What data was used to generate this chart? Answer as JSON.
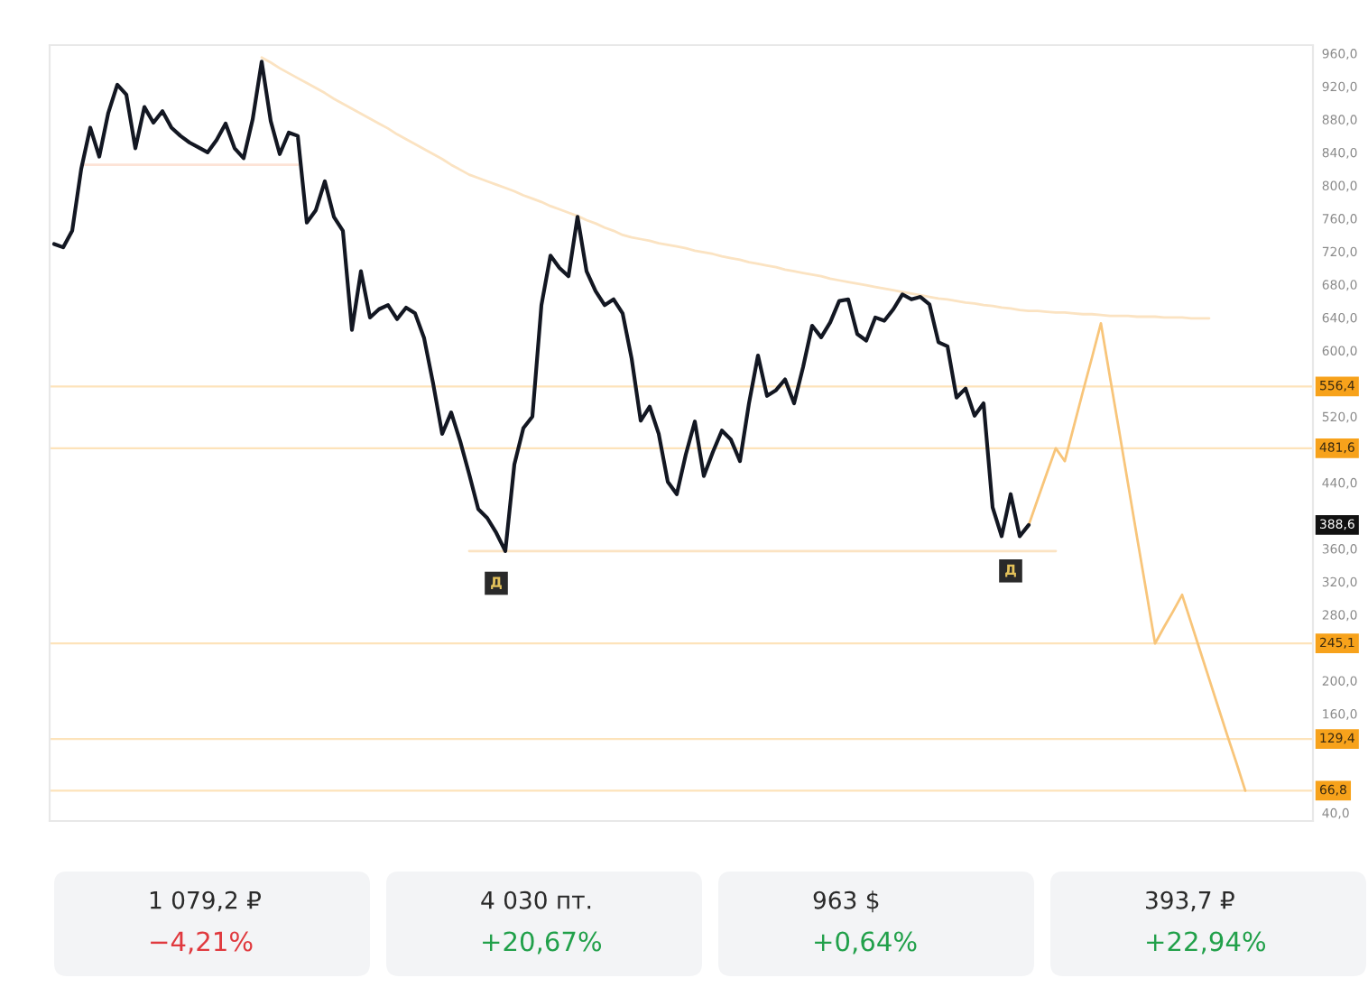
{
  "chart_data": [
    {
      "type": "line",
      "categories": [
        null,
        null,
        null,
        null,
        null,
        null,
        null,
        null,
        null,
        null,
        null,
        null,
        null,
        null,
        null,
        null,
        null,
        null,
        null,
        null,
        null,
        null,
        null,
        null,
        null,
        null,
        null,
        null,
        null,
        null,
        null,
        null,
        null,
        null,
        null,
        null,
        null,
        null,
        null,
        null,
        null,
        null,
        null,
        null,
        null,
        null,
        null,
        null,
        null,
        null,
        null,
        null,
        null,
        null,
        null,
        null,
        null,
        null,
        null,
        null,
        null,
        null,
        null,
        null,
        null,
        null,
        null,
        null,
        null,
        null,
        null,
        null,
        null,
        null,
        null,
        null,
        null,
        null,
        null,
        null,
        null,
        null,
        null,
        null,
        null,
        null,
        null,
        null,
        null,
        null,
        null,
        null,
        null,
        null,
        null,
        null,
        null,
        null,
        null,
        null,
        null,
        null,
        null,
        null,
        null,
        null,
        null,
        null,
        null,
        null,
        null,
        null,
        null,
        null,
        null,
        null,
        null,
        null,
        null,
        null,
        null,
        null,
        null,
        null,
        null,
        null,
        null,
        null,
        null,
        null,
        null,
        null,
        null,
        null,
        null,
        null,
        null,
        null,
        null,
        null
      ],
      "series": [
        {
          "type": "line",
          "color": "#fde3d6",
          "values": [
            null,
            null,
            null,
            825,
            825,
            825,
            825,
            825,
            825,
            825,
            825,
            825,
            825,
            825,
            825,
            825,
            825,
            825,
            825,
            825,
            825,
            825,
            825,
            825,
            825,
            825,
            825,
            825,
            null,
            null,
            null,
            null,
            null,
            null,
            null,
            null,
            null,
            null,
            null,
            null,
            null,
            null,
            null,
            null,
            null,
            null,
            null,
            null,
            null,
            null,
            null,
            null,
            null,
            null,
            null,
            null,
            null,
            null,
            null,
            null,
            null,
            null,
            null,
            null,
            null,
            null,
            null,
            null,
            null,
            null,
            null,
            null,
            null,
            null,
            null,
            null,
            null,
            null,
            null,
            null,
            null,
            null,
            null,
            null,
            null,
            null,
            null,
            null,
            null,
            null,
            null,
            null,
            null,
            null,
            null,
            null,
            null,
            null,
            null,
            null,
            null,
            null,
            null,
            null,
            null,
            null,
            null,
            null,
            null,
            null,
            null,
            null,
            null,
            null,
            null,
            null,
            null,
            null,
            null,
            null,
            null,
            null,
            null,
            null,
            null,
            null,
            null,
            null,
            null,
            null,
            null,
            null,
            null,
            null,
            null,
            null,
            null,
            null,
            null,
            null
          ]
        },
        {
          "type": "line",
          "color": "#fbe3c2",
          "values": [
            null,
            null,
            null,
            null,
            null,
            null,
            null,
            null,
            null,
            null,
            null,
            null,
            null,
            null,
            null,
            null,
            null,
            null,
            null,
            null,
            null,
            null,
            null,
            null,
            null,
            null,
            null,
            null,
            null,
            null,
            null,
            null,
            null,
            null,
            null,
            null,
            null,
            null,
            null,
            null,
            null,
            null,
            null,
            null,
            null,
            null,
            357,
            357,
            357,
            357,
            357,
            357,
            357,
            357,
            357,
            357,
            357,
            357,
            357,
            357,
            357,
            357,
            357,
            357,
            357,
            357,
            357,
            357,
            357,
            357,
            357,
            357,
            357,
            357,
            357,
            357,
            357,
            357,
            357,
            357,
            357,
            357,
            357,
            357,
            357,
            357,
            357,
            357,
            357,
            357,
            357,
            357,
            357,
            357,
            357,
            357,
            357,
            357,
            357,
            357,
            357,
            357,
            357,
            357,
            357,
            357,
            357,
            357,
            357,
            357,
            357,
            357,
            null,
            null,
            null,
            null,
            null,
            null,
            null,
            null,
            null,
            null,
            null,
            null,
            null,
            null,
            null,
            null,
            null,
            null,
            null,
            null,
            null,
            null,
            null,
            null,
            null,
            null,
            null,
            null
          ]
        },
        {
          "type": "line",
          "color": "#fbe3c2",
          "values": [
            null,
            null,
            null,
            null,
            null,
            null,
            null,
            null,
            null,
            null,
            null,
            null,
            null,
            null,
            null,
            null,
            null,
            null,
            null,
            null,
            null,
            null,
            null,
            955,
            949,
            942,
            936,
            930,
            924,
            918,
            912,
            905,
            899,
            893,
            887,
            881,
            875,
            869,
            862,
            856,
            850,
            844,
            838,
            832,
            825,
            819,
            813,
            809,
            805,
            801,
            797,
            793,
            788,
            784,
            780,
            775,
            771,
            767,
            763,
            758,
            754,
            749,
            745,
            740,
            737,
            735,
            733,
            730,
            728,
            726,
            724,
            721,
            719,
            717,
            714,
            712,
            710,
            707,
            705,
            703,
            701,
            698,
            696,
            694,
            692,
            690,
            687,
            685,
            683,
            681,
            679,
            677,
            675,
            673,
            671,
            669,
            667,
            665,
            663,
            662,
            660,
            658,
            657,
            655,
            654,
            652,
            651,
            649,
            648,
            648,
            647,
            646,
            646,
            645,
            644,
            644,
            643,
            642,
            642,
            642,
            641,
            641,
            641,
            640,
            640,
            640,
            639,
            639,
            639,
            null,
            null,
            null,
            null,
            null,
            null,
            null,
            null,
            null,
            null,
            null
          ]
        },
        {
          "type": "line",
          "color": "#f8c57a",
          "values": [
            null,
            null,
            null,
            null,
            null,
            null,
            null,
            null,
            null,
            null,
            null,
            null,
            null,
            null,
            null,
            null,
            null,
            null,
            null,
            null,
            null,
            null,
            null,
            null,
            null,
            null,
            null,
            null,
            null,
            null,
            null,
            null,
            null,
            null,
            null,
            null,
            null,
            null,
            null,
            null,
            null,
            null,
            null,
            null,
            null,
            null,
            null,
            null,
            null,
            null,
            null,
            null,
            null,
            null,
            null,
            null,
            null,
            null,
            null,
            null,
            null,
            null,
            null,
            null,
            null,
            null,
            null,
            null,
            null,
            null,
            null,
            null,
            null,
            null,
            null,
            null,
            null,
            null,
            null,
            null,
            null,
            null,
            null,
            null,
            null,
            null,
            null,
            null,
            null,
            null,
            null,
            null,
            null,
            null,
            null,
            null,
            null,
            null,
            null,
            null,
            null,
            null,
            null,
            null,
            null,
            null,
            null,
            null,
            388.6,
            420,
            451,
            481.6,
            466,
            508,
            550,
            591,
            633,
            568,
            504,
            439,
            374,
            310,
            245.1,
            265,
            284,
            304,
            270,
            236,
            202,
            168,
            134,
            101,
            66.8,
            null,
            null,
            null,
            null,
            null,
            null,
            null
          ]
        },
        {
          "type": "line",
          "color": "#131722",
          "values": [
            729,
            725,
            745,
            820,
            870,
            835,
            888,
            922,
            910,
            845,
            895,
            876,
            890,
            870,
            860,
            852,
            846,
            840,
            855,
            875,
            845,
            833,
            880,
            950,
            878,
            838,
            864,
            860,
            755,
            770,
            805,
            762,
            745,
            625,
            696,
            640,
            650,
            655,
            638,
            652,
            645,
            615,
            560,
            499,
            525,
            490,
            450,
            408,
            397,
            379,
            357,
            462,
            506,
            520,
            655,
            715,
            700,
            690,
            762,
            696,
            672,
            655,
            662,
            645,
            590,
            515,
            532,
            499,
            441,
            426,
            474,
            514,
            448,
            477,
            503,
            492,
            466,
            536,
            594,
            545,
            552,
            565,
            536,
            580,
            630,
            616,
            634,
            660,
            662,
            620,
            612,
            640,
            636,
            650,
            668,
            662,
            665,
            656,
            610,
            605,
            543,
            554,
            521,
            536,
            410,
            375,
            426,
            375,
            388.6,
            null,
            null,
            null,
            null,
            null,
            null,
            null,
            null,
            null,
            null,
            null,
            null,
            null,
            null,
            null,
            null,
            null,
            null,
            null,
            null,
            null,
            null,
            null,
            null,
            null,
            null,
            null,
            null,
            null,
            null,
            null
          ]
        },
        {
          "type": "scatter",
          "name": "Д",
          "color": "#2a2a2a",
          "marker": "square",
          "values": [
            null,
            null,
            null,
            null,
            null,
            null,
            null,
            null,
            null,
            null,
            null,
            null,
            null,
            null,
            null,
            null,
            null,
            null,
            null,
            null,
            null,
            null,
            null,
            null,
            null,
            null,
            null,
            null,
            null,
            null,
            null,
            null,
            null,
            null,
            null,
            null,
            null,
            null,
            null,
            null,
            null,
            null,
            null,
            null,
            null,
            null,
            null,
            null,
            null,
            318,
            null,
            null,
            null,
            null,
            null,
            null,
            null,
            null,
            null,
            null,
            null,
            null,
            null,
            null,
            null,
            null,
            null,
            null,
            null,
            null,
            null,
            null,
            null,
            null,
            null,
            null,
            null,
            null,
            null,
            null,
            null,
            null,
            null,
            null,
            null,
            null,
            null,
            null,
            null,
            null,
            null,
            null,
            null,
            null,
            null,
            null,
            null,
            null,
            null,
            null,
            null,
            null,
            null,
            null,
            null,
            null,
            333,
            null,
            null,
            null,
            null,
            null,
            null,
            null,
            null,
            null,
            null,
            null,
            null,
            null,
            null,
            null,
            null,
            null,
            null,
            null,
            null,
            null,
            null,
            null,
            null,
            null,
            null,
            null,
            null,
            null,
            null,
            null,
            null,
            null
          ]
        }
      ],
      "ylim": [
        30,
        970
      ],
      "yticks": [
        {
          "value": 40,
          "label": "40,0"
        },
        {
          "value": 160,
          "label": "160,0"
        },
        {
          "value": 200,
          "label": "200,0"
        },
        {
          "value": 280,
          "label": "280,0"
        },
        {
          "value": 320,
          "label": "320,0"
        },
        {
          "value": 360,
          "label": "360,0"
        },
        {
          "value": 440,
          "label": "440,0"
        },
        {
          "value": 520,
          "label": "520,0"
        },
        {
          "value": 600,
          "label": "600,0"
        },
        {
          "value": 640,
          "label": "640,0"
        },
        {
          "value": 680,
          "label": "680,0"
        },
        {
          "value": 720,
          "label": "720,0"
        },
        {
          "value": 760,
          "label": "760,0"
        },
        {
          "value": 800,
          "label": "800,0"
        },
        {
          "value": 840,
          "label": "840,0"
        },
        {
          "value": 880,
          "label": "880,0"
        },
        {
          "value": 920,
          "label": "920,0"
        },
        {
          "value": 960,
          "label": "960,0"
        }
      ],
      "tick_labels": "y",
      "ref_lines": [
        {
          "axis": "y",
          "value": 556.4,
          "label": "556,4",
          "color": "#f7a21b"
        },
        {
          "axis": "y",
          "value": 481.6,
          "label": "481,6",
          "color": "#f7a21b"
        },
        {
          "axis": "y",
          "value": 245.1,
          "label": "245,1",
          "color": "#f7a21b"
        },
        {
          "axis": "y",
          "value": 129.4,
          "label": "129,4",
          "color": "#f7a21b"
        },
        {
          "axis": "y",
          "value": 66.8,
          "label": "66,8",
          "color": "#f7a21b"
        }
      ],
      "annotations": [
        {
          "text": "388,6",
          "y": 388.6
        }
      ]
    },
    {
      "type": "other",
      "categories": [
        "1 079,2 ₽",
        "4 030 пт.",
        "963 $",
        "393,7 ₽"
      ],
      "series": [
        {
          "values": [
            -4.21,
            20.67,
            0.64,
            22.94
          ],
          "value_labels": [
            "−4,21%",
            "+20,67%",
            "+0,64%",
            "+22,94%"
          ]
        }
      ]
    }
  ]
}
